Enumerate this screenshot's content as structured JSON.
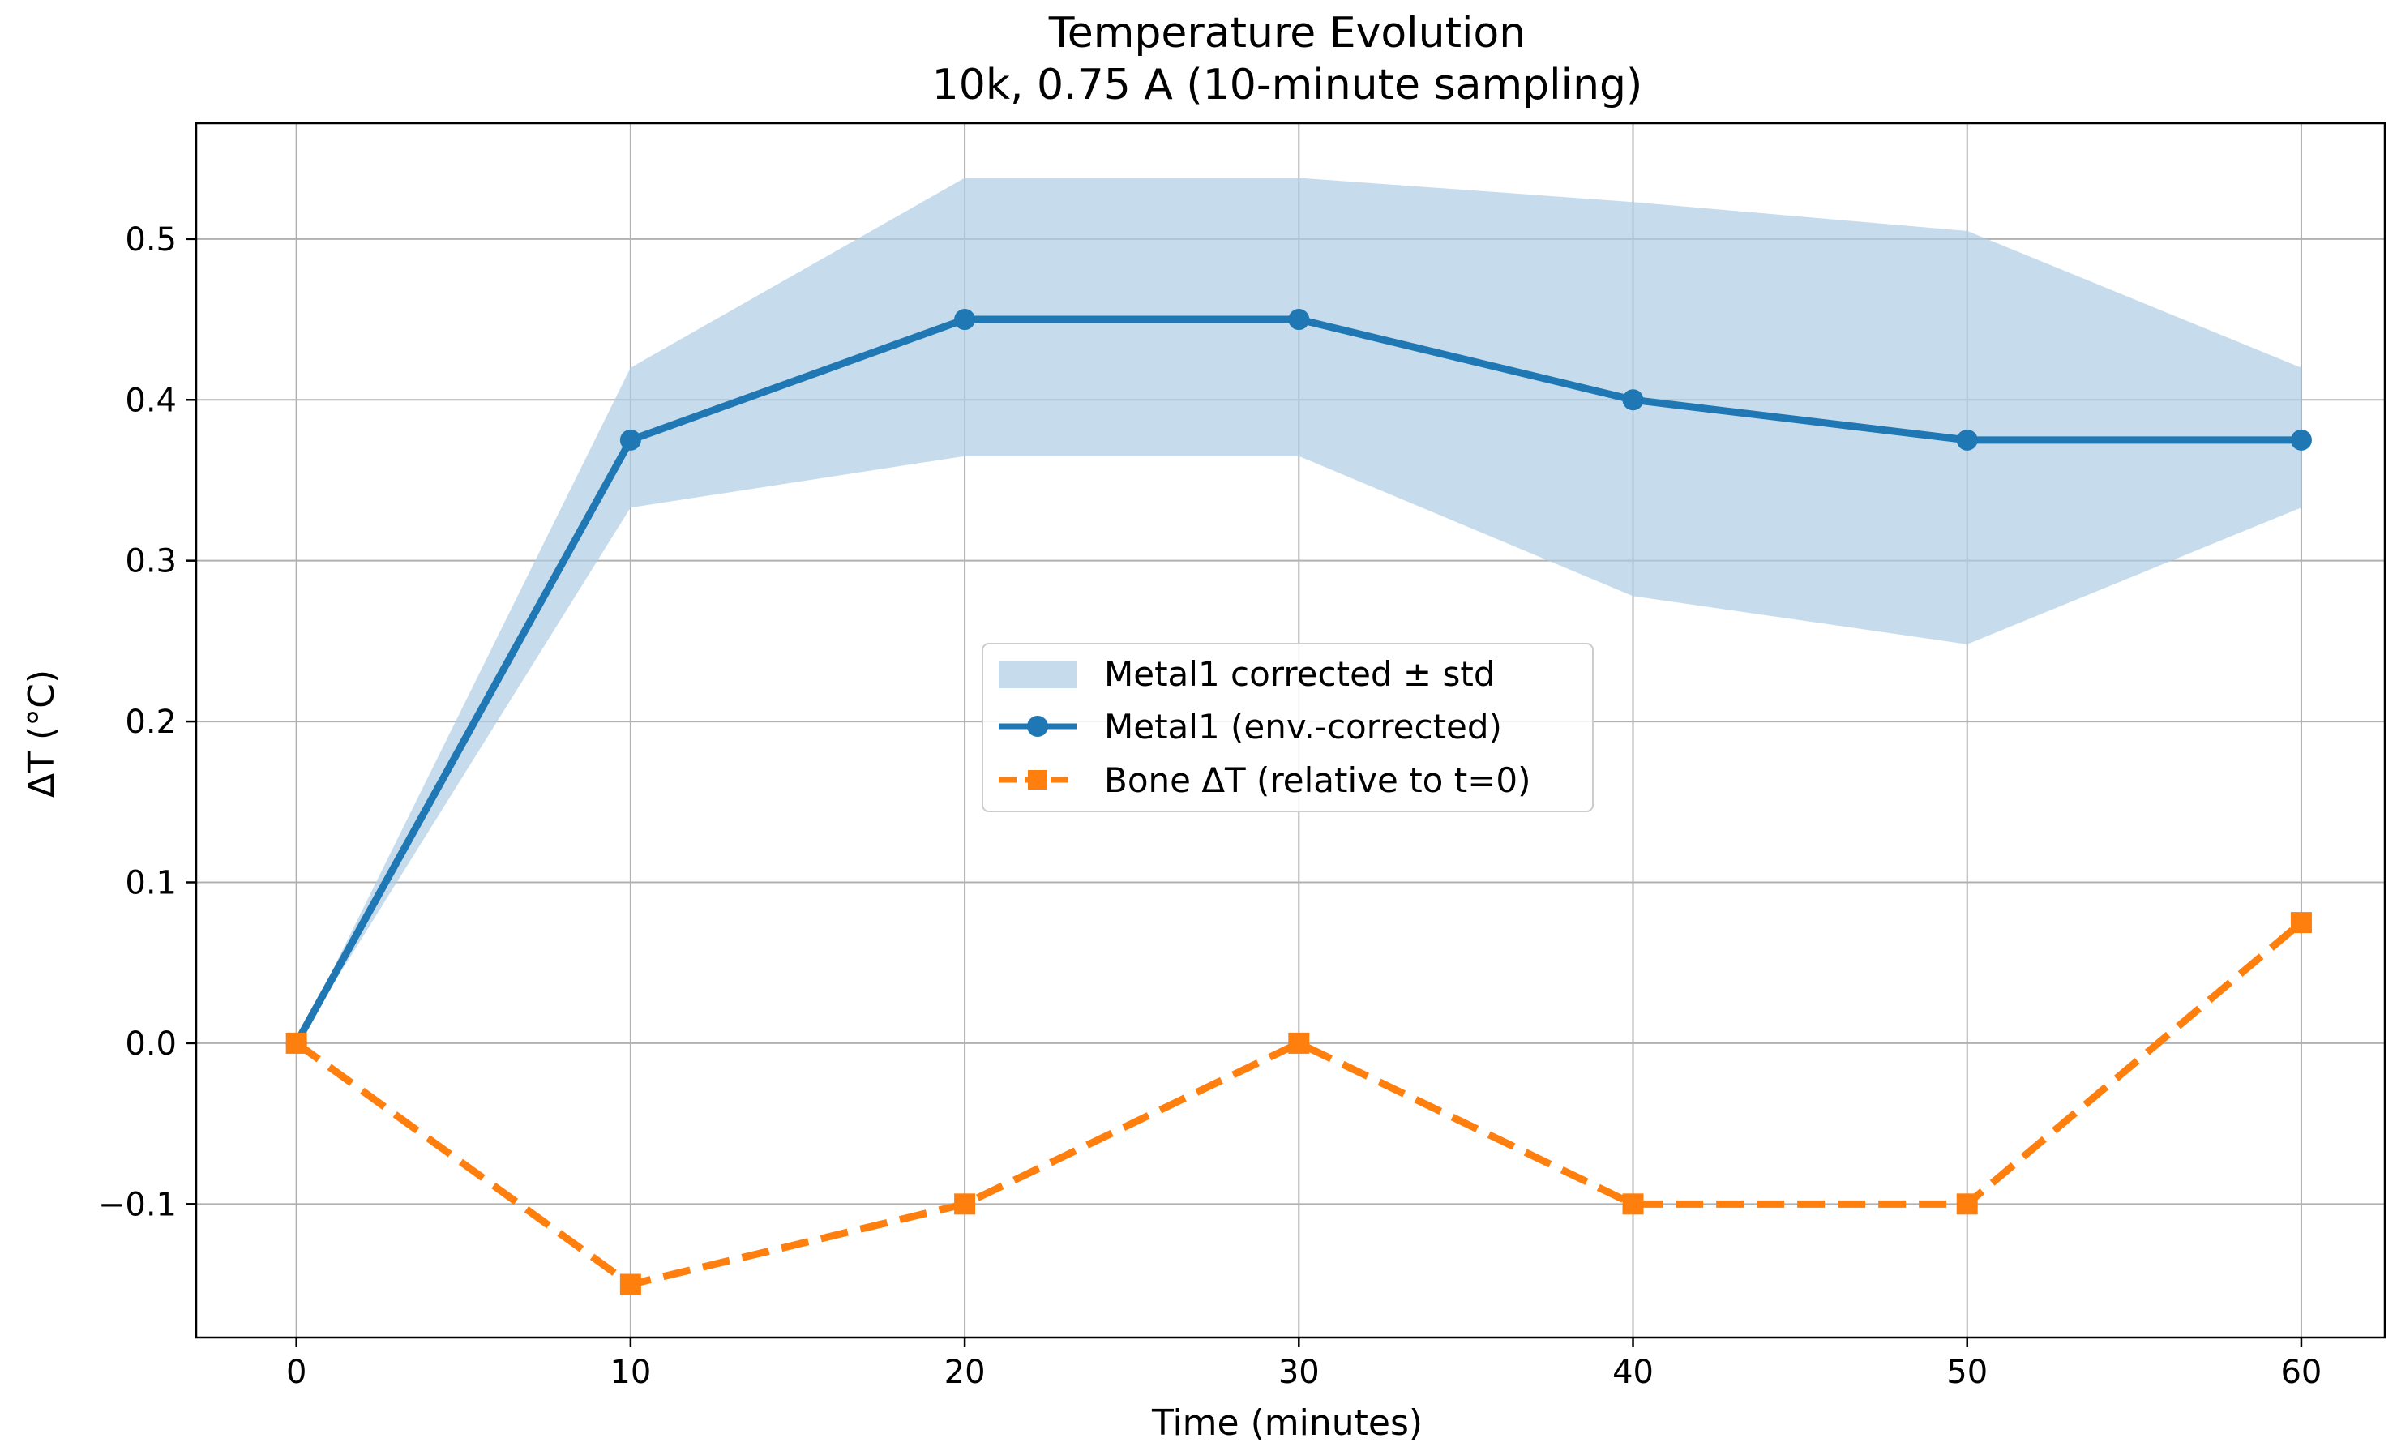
{
  "chart_data": {
    "type": "line",
    "title": "Temperature Evolution",
    "subtitle": "10k, 0.75 A (10-minute sampling)",
    "xlabel": "Time (minutes)",
    "ylabel": "ΔT (°C)",
    "x": [
      0,
      10,
      20,
      30,
      40,
      50,
      60
    ],
    "xlim": [
      -3,
      62.5
    ],
    "ylim": [
      -0.183,
      0.572
    ],
    "x_ticks": [
      0,
      10,
      20,
      30,
      40,
      50,
      60
    ],
    "y_ticks": [
      -0.1,
      0.0,
      0.1,
      0.2,
      0.3,
      0.4,
      0.5
    ],
    "x_tick_labels": [
      "0",
      "10",
      "20",
      "30",
      "40",
      "50",
      "60"
    ],
    "y_tick_labels": [
      "−0.1",
      "0.0",
      "0.1",
      "0.2",
      "0.3",
      "0.4",
      "0.5"
    ],
    "grid": true,
    "legend_position": "center",
    "band": {
      "name": "Metal1 corrected ± std",
      "color": "#aecde6",
      "upper": [
        0.0,
        0.42,
        0.538,
        0.538,
        0.523,
        0.505,
        0.42
      ],
      "lower": [
        0.0,
        0.333,
        0.365,
        0.365,
        0.278,
        0.248,
        0.333
      ]
    },
    "series": [
      {
        "name": "Metal1 (env.-corrected)",
        "color": "#1f77b4",
        "linestyle": "solid",
        "marker": "circle",
        "values": [
          0.0,
          0.375,
          0.45,
          0.45,
          0.4,
          0.375,
          0.375
        ]
      },
      {
        "name": "Bone ΔT (relative to t=0)",
        "color": "#ff7f0e",
        "linestyle": "dashed",
        "marker": "square",
        "values": [
          0.0,
          -0.15,
          -0.1,
          0.0,
          -0.1,
          -0.1,
          0.075
        ]
      }
    ]
  }
}
